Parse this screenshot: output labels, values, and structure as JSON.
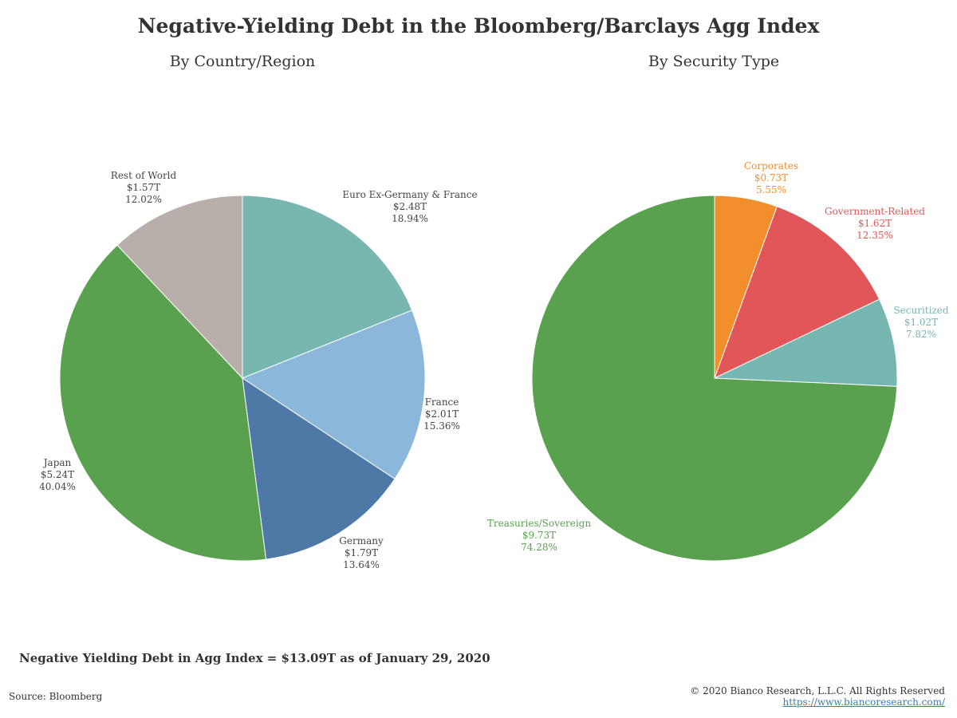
{
  "title": "Negative-Yielding Debt in the Bloomberg/Barclays Agg Index",
  "footnote": "Negative Yielding Debt in Agg Index = $13.09T as of January 29, 2020",
  "source": "Source: Bloomberg",
  "copyright": "© 2020 Bianco Research, L.L.C. All Rights Reserved",
  "website": "https://www.biancoresearch.com/",
  "chart_data": [
    {
      "type": "pie",
      "title": "By Country/Region",
      "slices": [
        {
          "label": "Euro Ex-Germany & France",
          "amount": "$2.48T",
          "pct_label": "18.94%",
          "value": 18.94,
          "color": "#78b6b0",
          "label_color": "#444444"
        },
        {
          "label": "France",
          "amount": "$2.01T",
          "pct_label": "15.36%",
          "value": 15.36,
          "color": "#8bb8da",
          "label_color": "#444444"
        },
        {
          "label": "Germany",
          "amount": "$1.79T",
          "pct_label": "13.64%",
          "value": 13.64,
          "color": "#4e79a7",
          "label_color": "#444444"
        },
        {
          "label": "Japan",
          "amount": "$5.24T",
          "pct_label": "40.04%",
          "value": 40.04,
          "color": "#59a14f",
          "label_color": "#444444"
        },
        {
          "label": "Rest of World",
          "amount": "$1.57T",
          "pct_label": "12.02%",
          "value": 12.02,
          "color": "#b9afaa",
          "label_color": "#444444"
        }
      ]
    },
    {
      "type": "pie",
      "title": "By Security Type",
      "slices": [
        {
          "label": "Corporates",
          "amount": "$0.73T",
          "pct_label": "5.55%",
          "value": 5.55,
          "color": "#f28e2b",
          "label_color": "#f28e2b"
        },
        {
          "label": "Government-Related",
          "amount": "$1.62T",
          "pct_label": "12.35%",
          "value": 12.35,
          "color": "#e15759",
          "label_color": "#e15759"
        },
        {
          "label": "Securitized",
          "amount": "$1.02T",
          "pct_label": "7.82%",
          "value": 7.82,
          "color": "#76b7b2",
          "label_color": "#76b7b2"
        },
        {
          "label": "Treasuries/Sovereign",
          "amount": "$9.73T",
          "pct_label": "74.28%",
          "value": 74.28,
          "color": "#59a14f",
          "label_color": "#59a14f"
        }
      ]
    }
  ]
}
